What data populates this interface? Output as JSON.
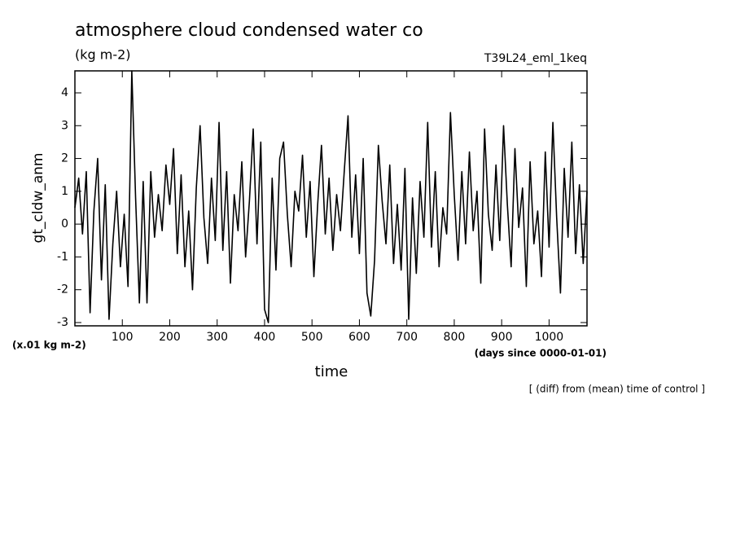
{
  "chart_data": {
    "type": "line",
    "title": "atmosphere cloud condensed water co",
    "subtitle": "(kg m-2)",
    "run_label": "T39L24_eml_1keq",
    "y_label": "gt_cldw_anm",
    "y_unit": "(x.01 kg m-2)",
    "x_label": "time",
    "x_unit": "(days since 0000-01-01)",
    "note": "[ (diff) from (mean) time of control ]",
    "xlim": [
      0,
      1080
    ],
    "ylim": [
      -3.1,
      4.67
    ],
    "xticks": [
      100,
      200,
      300,
      400,
      500,
      600,
      700,
      800,
      900,
      1000
    ],
    "yticks": [
      -3,
      -2,
      -1,
      0,
      1,
      2,
      3,
      4
    ],
    "x": [
      0,
      8,
      16,
      24,
      32,
      40,
      48,
      56,
      64,
      72,
      80,
      88,
      96,
      104,
      112,
      120,
      128,
      136,
      144,
      152,
      160,
      168,
      176,
      184,
      192,
      200,
      208,
      216,
      224,
      232,
      240,
      248,
      256,
      264,
      272,
      280,
      288,
      296,
      304,
      312,
      320,
      328,
      336,
      344,
      352,
      360,
      368,
      376,
      384,
      392,
      400,
      408,
      416,
      424,
      432,
      440,
      448,
      456,
      464,
      472,
      480,
      488,
      496,
      504,
      512,
      520,
      528,
      536,
      544,
      552,
      560,
      568,
      576,
      584,
      592,
      600,
      608,
      616,
      624,
      632,
      640,
      648,
      656,
      664,
      672,
      680,
      688,
      696,
      704,
      712,
      720,
      728,
      736,
      744,
      752,
      760,
      768,
      776,
      784,
      792,
      800,
      808,
      816,
      824,
      832,
      840,
      848,
      856,
      864,
      872,
      880,
      888,
      896,
      904,
      912,
      920,
      928,
      936,
      944,
      952,
      960,
      968,
      976,
      984,
      992,
      1000,
      1008,
      1016,
      1024,
      1032,
      1040,
      1048,
      1056,
      1064,
      1072,
      1080
    ],
    "series": [
      {
        "color": "#000000",
        "values": [
          0.5,
          1.4,
          -0.3,
          1.6,
          -2.7,
          0.4,
          2.0,
          -1.7,
          1.2,
          -2.9,
          -0.6,
          1.0,
          -1.3,
          0.3,
          -1.9,
          4.67,
          0.8,
          -2.4,
          1.3,
          -2.4,
          1.6,
          -0.4,
          0.9,
          -0.2,
          1.8,
          0.6,
          2.3,
          -0.9,
          1.5,
          -1.3,
          0.4,
          -2.0,
          1.1,
          3.0,
          0.2,
          -1.2,
          1.4,
          -0.5,
          3.1,
          -0.8,
          1.6,
          -1.8,
          0.9,
          -0.2,
          1.9,
          -1.0,
          0.7,
          2.9,
          -0.6,
          2.5,
          -2.6,
          -3.0,
          1.4,
          -1.4,
          2.0,
          2.5,
          0.3,
          -1.3,
          1.0,
          0.4,
          2.1,
          -0.4,
          1.3,
          -1.6,
          0.6,
          2.4,
          -0.3,
          1.4,
          -0.8,
          0.9,
          -0.2,
          1.6,
          3.3,
          -0.4,
          1.5,
          -0.9,
          2.0,
          -2.1,
          -2.8,
          -1.1,
          2.4,
          0.7,
          -0.6,
          1.8,
          -1.2,
          0.6,
          -1.4,
          1.7,
          -2.9,
          0.8,
          -1.5,
          1.3,
          -0.4,
          3.1,
          -0.7,
          1.6,
          -1.3,
          0.5,
          -0.3,
          3.4,
          0.9,
          -1.1,
          1.6,
          -0.6,
          2.2,
          -0.2,
          1.0,
          -1.8,
          2.9,
          0.3,
          -0.8,
          1.8,
          -0.5,
          3.0,
          0.6,
          -1.3,
          2.3,
          -0.1,
          1.1,
          -1.9,
          1.9,
          -0.6,
          0.4,
          -1.6,
          2.2,
          -0.7,
          3.1,
          0.2,
          -2.1,
          1.7,
          -0.4,
          2.5,
          -0.9,
          1.2,
          -1.2,
          1.0
        ]
      }
    ]
  }
}
